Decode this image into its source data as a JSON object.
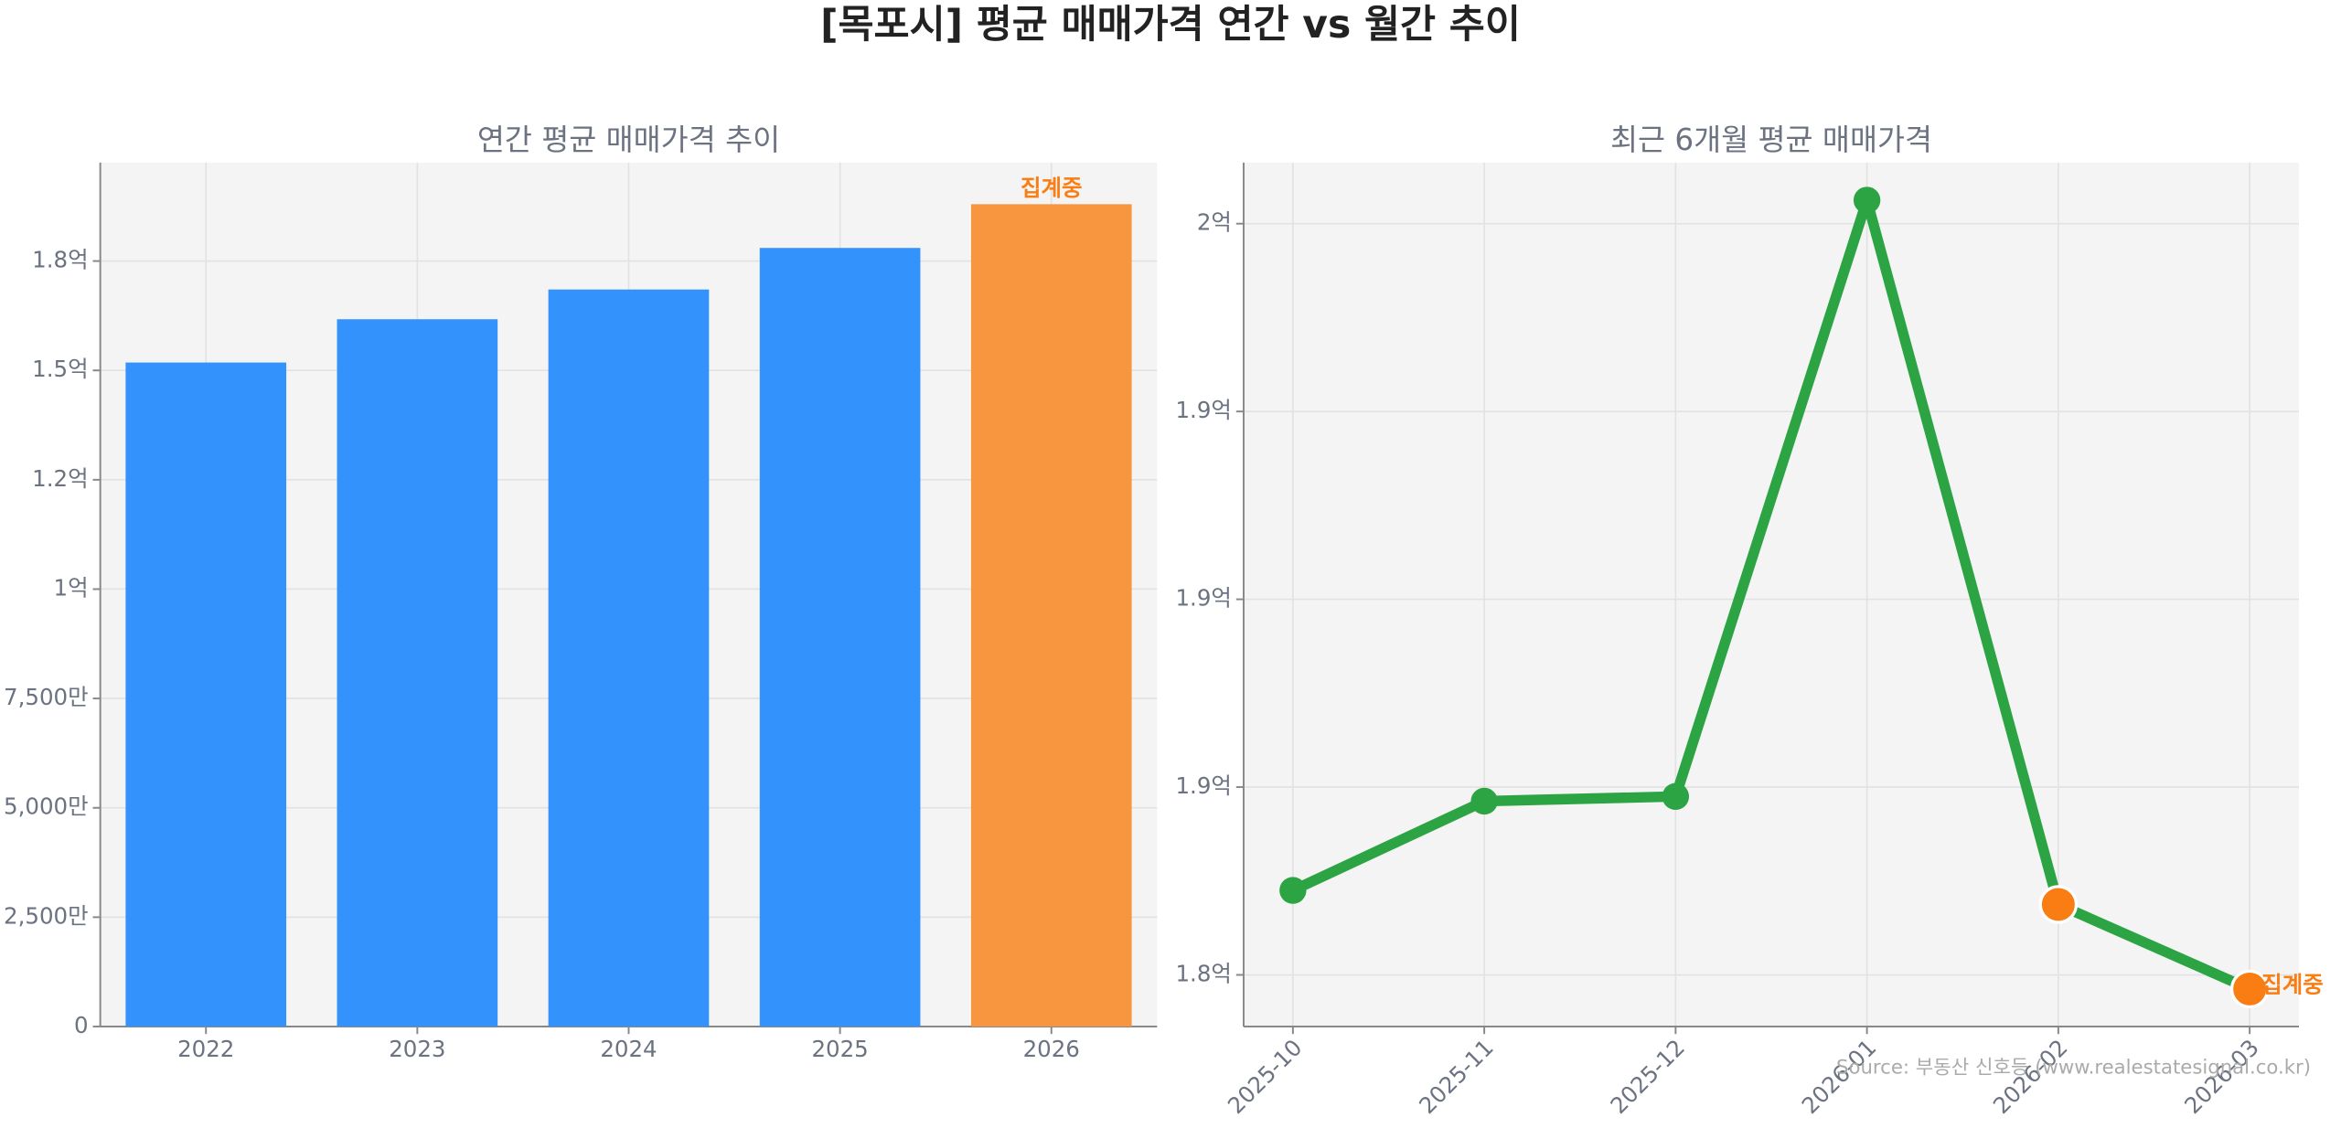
{
  "title": "[목포시] 평균 매매가격 연간 vs 월간 추이",
  "source": "Source: 부동산 신호등 (www.realestatesignal.co.kr)",
  "chart_data": [
    {
      "type": "bar",
      "title": "연간 평균 매매가격 추이",
      "categories": [
        "2022",
        "2023",
        "2024",
        "2025",
        "2026"
      ],
      "values": [
        151800000,
        161700000,
        168500000,
        178000000,
        188000000
      ],
      "colors": [
        "#3392fb",
        "#3392fb",
        "#3392fb",
        "#3392fb",
        "#f7963f"
      ],
      "annotation": "집계중",
      "annotation_color": "#f97d12",
      "ylim": [
        0,
        197500000
      ],
      "yticks": [
        0,
        {
          "value": 25000000,
          "label": "2,500만"
        },
        {
          "value": 50000000,
          "label": "5,000만"
        },
        {
          "value": 75000000,
          "label": "7,500만"
        },
        {
          "value": 100000000,
          "label": "1억"
        },
        {
          "value": 125000000,
          "label": "1.2억"
        },
        {
          "value": 150000000,
          "label": "1.5억"
        },
        {
          "value": 175000000,
          "label": "1.8억"
        }
      ],
      "grid": true
    },
    {
      "type": "line",
      "title": "최근 6개월 평균 매매가격",
      "categories": [
        "2025-10",
        "2025-11",
        "2025-12",
        "2026-01",
        "2026-02",
        "2026-03"
      ],
      "values": [
        183800000,
        185700000,
        185800000,
        198500000,
        183500000,
        181700000
      ],
      "color": "#2ca444",
      "point_colors": [
        "#2ca444",
        "#2ca444",
        "#2ca444",
        "#2ca444",
        "#f97d12",
        "#f97d12"
      ],
      "annotation": "집계중",
      "annotation_color": "#f97d12",
      "ylim": [
        180900000,
        199300000
      ],
      "yticks": [
        {
          "value": 182000000,
          "label": "1.8억"
        },
        {
          "value": 186000000,
          "label": "1.9억"
        },
        {
          "value": 190000000,
          "label": "1.9억"
        },
        {
          "value": 194000000,
          "label": "1.9억"
        },
        {
          "value": 198000000,
          "label": "2억"
        }
      ],
      "grid": true
    }
  ]
}
